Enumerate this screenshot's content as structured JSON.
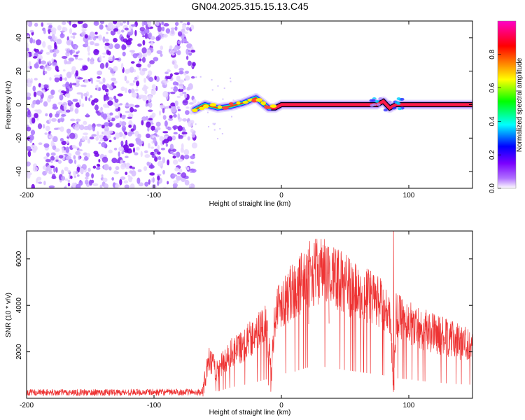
{
  "figure": {
    "title": "GN04.2025.315.15.13.C45"
  },
  "chart_data": [
    {
      "id": "spectrogram",
      "type": "heatmap",
      "xlabel": "Height of straight line (km)",
      "ylabel": "Frequency (Hz)",
      "xlim": [
        -200,
        150
      ],
      "ylim": [
        -50,
        50
      ],
      "xticks": [
        -200,
        -100,
        0,
        100
      ],
      "yticks": [
        -40,
        -20,
        0,
        20,
        40
      ],
      "noise_region_x": [
        -200,
        -68
      ],
      "ridge": {
        "description_points": [
          {
            "x": -68,
            "y": -3
          },
          {
            "x": -60,
            "y": 0
          },
          {
            "x": -50,
            "y": -2
          },
          {
            "x": -40,
            "y": -1
          },
          {
            "x": -30,
            "y": 1
          },
          {
            "x": -20,
            "y": 4
          },
          {
            "x": -15,
            "y": 1
          },
          {
            "x": -10,
            "y": -2
          },
          {
            "x": -5,
            "y": -2
          },
          {
            "x": 0,
            "y": 0
          },
          {
            "x": 50,
            "y": 0
          },
          {
            "x": 75,
            "y": 0
          },
          {
            "x": 80,
            "y": 2
          },
          {
            "x": 85,
            "y": -2
          },
          {
            "x": 90,
            "y": 0
          },
          {
            "x": 150,
            "y": 0
          }
        ]
      },
      "colorbar": {
        "label": "Normalized spectral amplitude",
        "ticks": [
          0.0,
          0.2,
          0.4,
          0.6,
          0.8
        ],
        "range": [
          0,
          1
        ],
        "colors": [
          "#ffffff",
          "#a000ff",
          "#0000ff",
          "#00ffff",
          "#00ff00",
          "#ffff00",
          "#ff0000",
          "#ff00c8"
        ]
      }
    },
    {
      "id": "snr",
      "type": "line",
      "xlabel": "Height of straight line (km)",
      "ylabel": "SNR (10 * v/v)",
      "xlim": [
        -200,
        150
      ],
      "ylim": [
        0,
        7200
      ],
      "xticks": [
        -200,
        -100,
        0,
        100
      ],
      "yticks": [
        2000,
        4000,
        6000
      ],
      "color": "#ee3333",
      "envelope": [
        {
          "x": -200,
          "y": 250
        },
        {
          "x": -150,
          "y": 250
        },
        {
          "x": -100,
          "y": 260
        },
        {
          "x": -62,
          "y": 270
        },
        {
          "x": -57,
          "y": 1600
        },
        {
          "x": -50,
          "y": 1200
        },
        {
          "x": -40,
          "y": 1900
        },
        {
          "x": -30,
          "y": 2300
        },
        {
          "x": -20,
          "y": 2800
        },
        {
          "x": -12,
          "y": 3300
        },
        {
          "x": -8,
          "y": 1000
        },
        {
          "x": -5,
          "y": 3700
        },
        {
          "x": 0,
          "y": 4200
        },
        {
          "x": 10,
          "y": 4600
        },
        {
          "x": 20,
          "y": 5300
        },
        {
          "x": 30,
          "y": 5500
        },
        {
          "x": 40,
          "y": 5300
        },
        {
          "x": 50,
          "y": 4900
        },
        {
          "x": 60,
          "y": 4600
        },
        {
          "x": 70,
          "y": 4300
        },
        {
          "x": 80,
          "y": 4000
        },
        {
          "x": 85,
          "y": 3500
        },
        {
          "x": 88,
          "y": 600
        },
        {
          "x": 90,
          "y": 3500
        },
        {
          "x": 100,
          "y": 3300
        },
        {
          "x": 110,
          "y": 3000
        },
        {
          "x": 120,
          "y": 2800
        },
        {
          "x": 135,
          "y": 2500
        },
        {
          "x": 150,
          "y": 2350
        }
      ],
      "spikes": [
        {
          "x": 21,
          "y": 6400
        },
        {
          "x": 37,
          "y": 6500
        },
        {
          "x": 88,
          "y": 7200
        }
      ]
    }
  ]
}
